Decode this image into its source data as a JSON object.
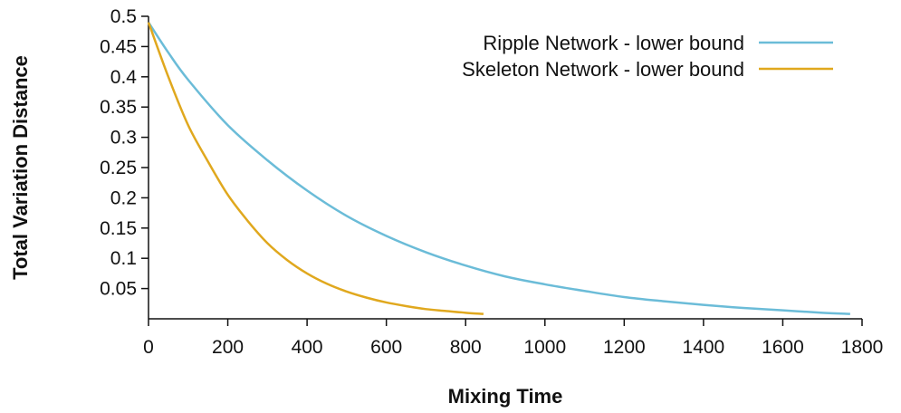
{
  "chart_data": {
    "type": "line",
    "title": "",
    "xlabel": "Mixing Time",
    "ylabel": "Total Variation Distance",
    "xlim": [
      0,
      1800
    ],
    "ylim": [
      0,
      0.5
    ],
    "x_ticks": [
      "0",
      "200",
      "400",
      "600",
      "800",
      "1000",
      "1200",
      "1400",
      "1600",
      "1800"
    ],
    "y_ticks": [
      "0.05",
      "0.1",
      "0.15",
      "0.2",
      "0.25",
      "0.3",
      "0.35",
      "0.4",
      "0.45",
      "0.5"
    ],
    "grid": false,
    "legend_position": "top-right",
    "series": [
      {
        "name": "Ripple Network - lower bound",
        "color": "#6bbcd8",
        "x": [
          0,
          50,
          100,
          200,
          300,
          400,
          500,
          600,
          700,
          800,
          900,
          1000,
          1100,
          1200,
          1300,
          1400,
          1500,
          1600,
          1700,
          1770
        ],
        "y": [
          0.49,
          0.44,
          0.395,
          0.32,
          0.262,
          0.212,
          0.17,
          0.137,
          0.11,
          0.088,
          0.07,
          0.057,
          0.046,
          0.036,
          0.029,
          0.023,
          0.018,
          0.014,
          0.01,
          0.008
        ]
      },
      {
        "name": "Skeleton Network - lower bound",
        "color": "#e0a81e",
        "x": [
          0,
          50,
          100,
          150,
          200,
          250,
          300,
          350,
          400,
          450,
          500,
          550,
          600,
          650,
          700,
          750,
          800,
          845
        ],
        "y": [
          0.49,
          0.4,
          0.32,
          0.26,
          0.205,
          0.162,
          0.125,
          0.097,
          0.075,
          0.058,
          0.045,
          0.035,
          0.027,
          0.021,
          0.016,
          0.013,
          0.01,
          0.008
        ]
      }
    ]
  }
}
